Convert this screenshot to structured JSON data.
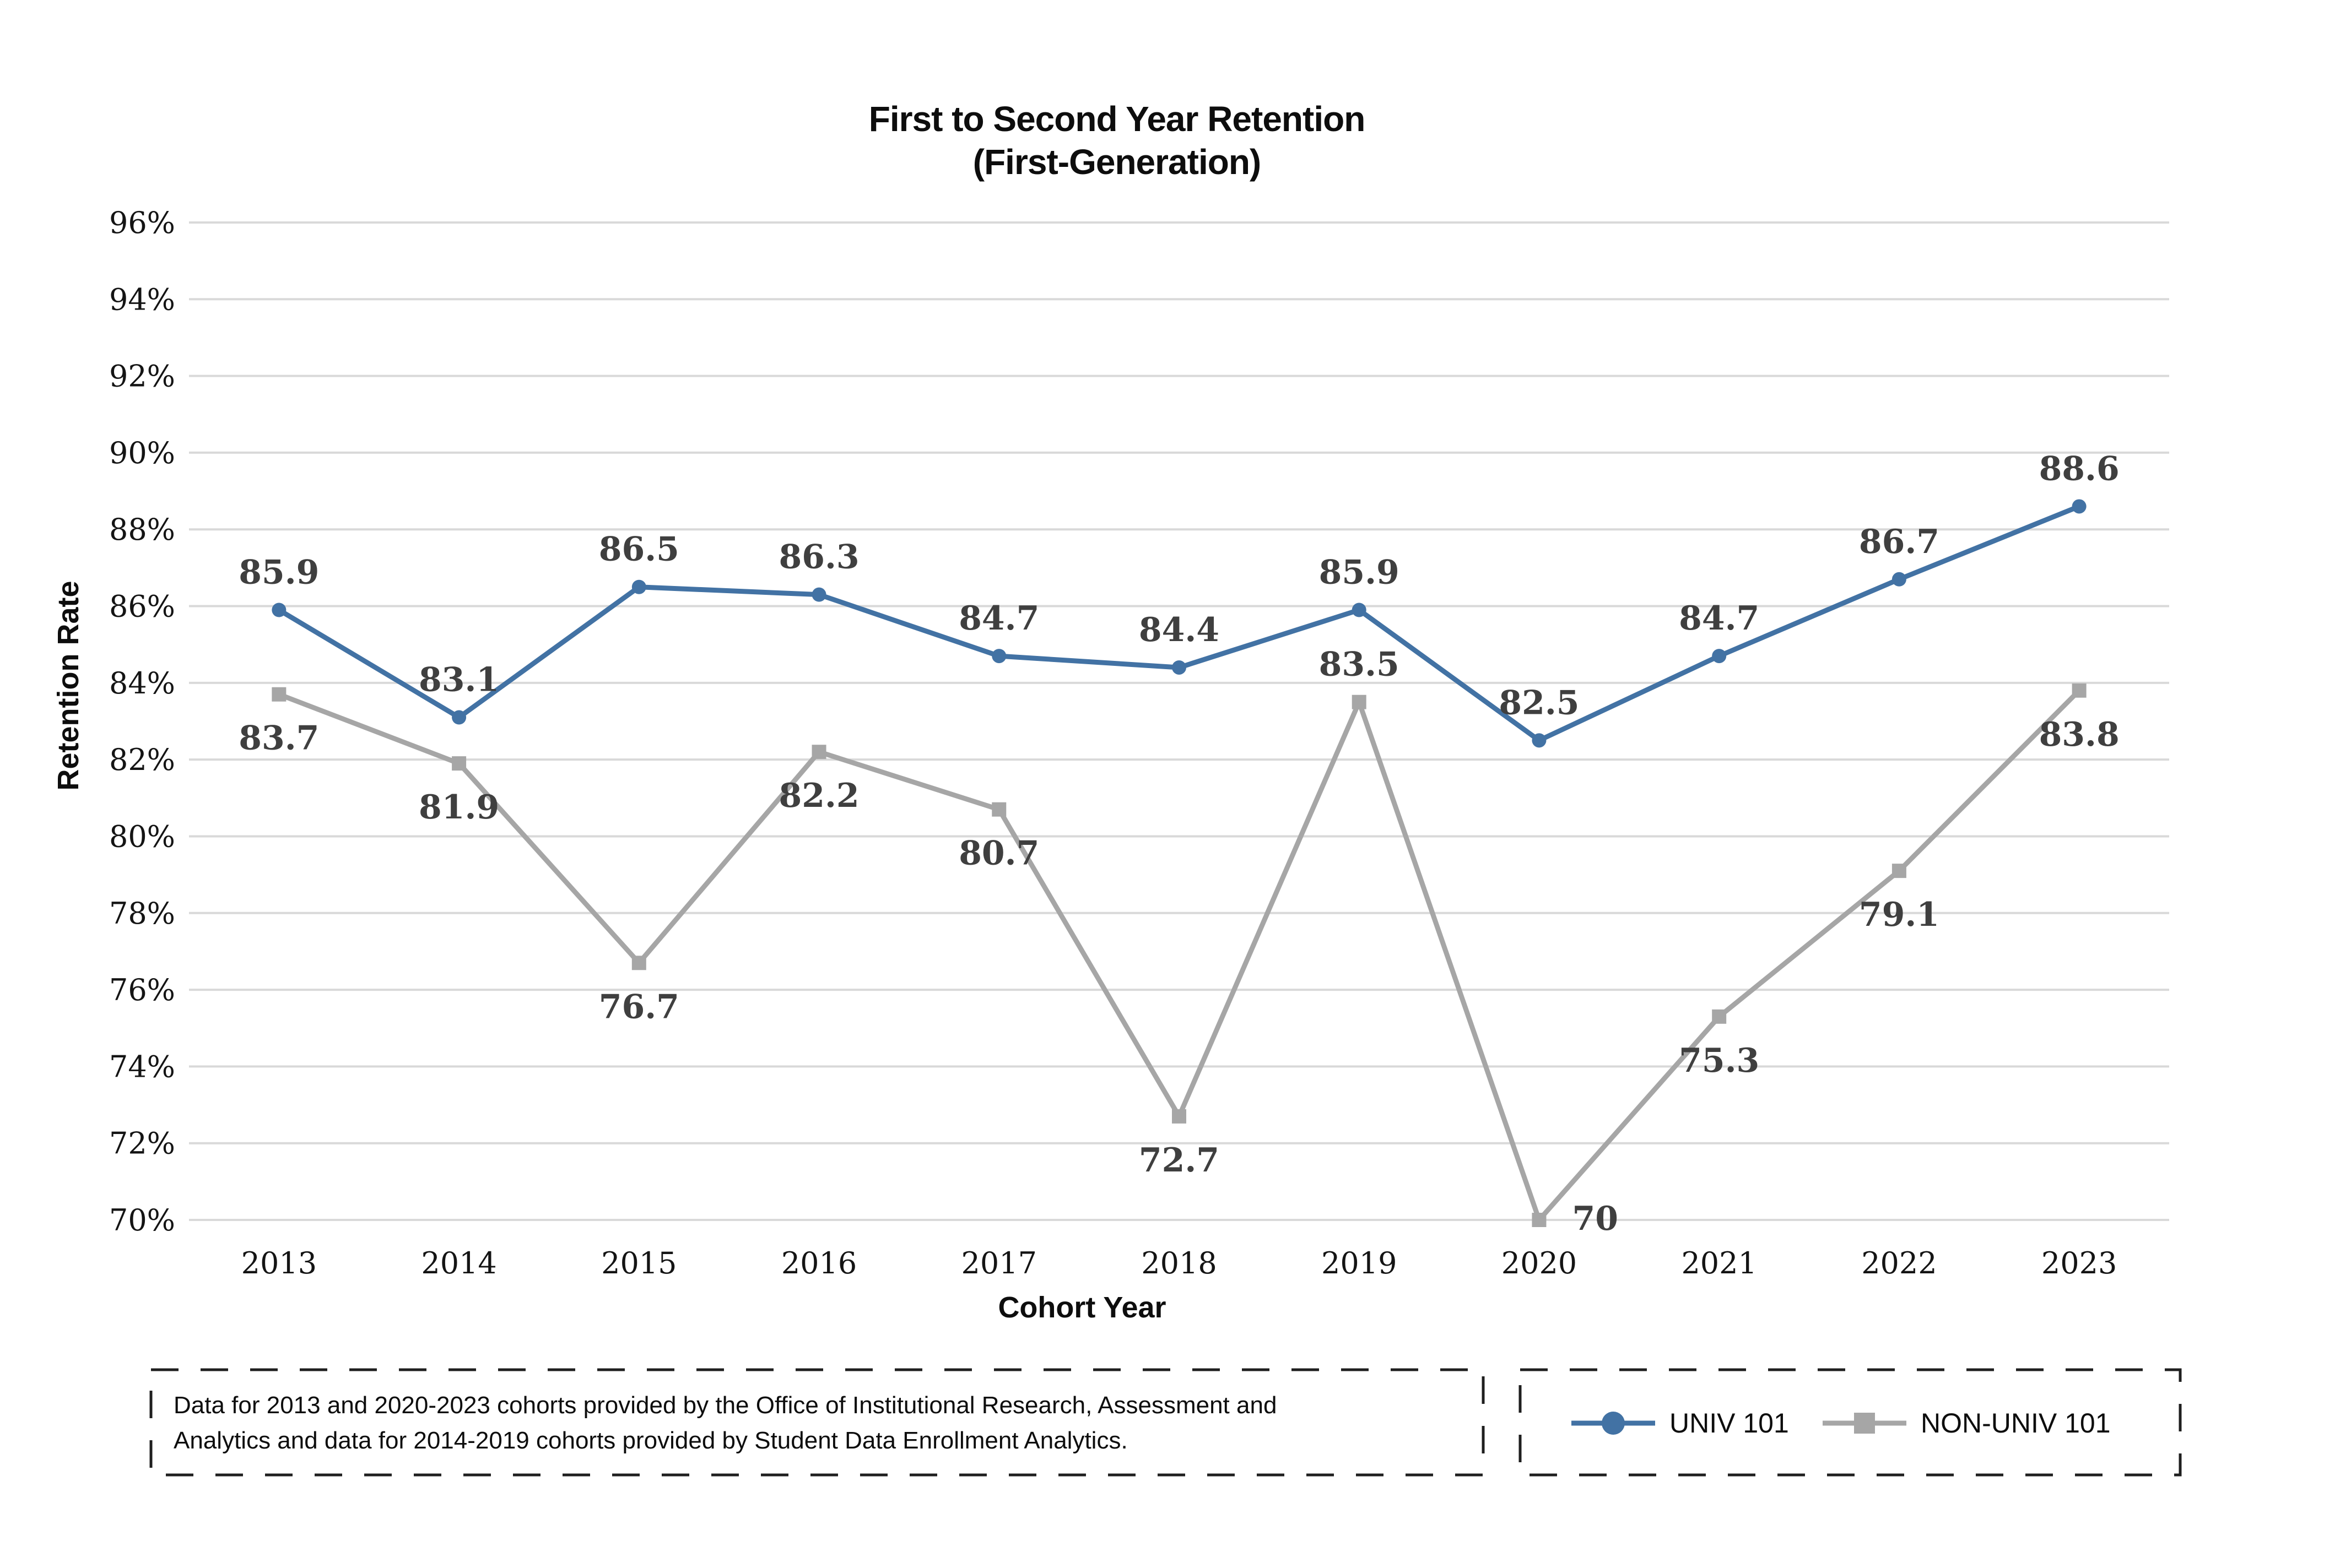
{
  "chart_data": {
    "type": "line",
    "title": "First to Second Year Retention",
    "subtitle": "(First-Generation)",
    "xlabel": "Cohort Year",
    "ylabel": "Retention Rate",
    "ylim": [
      70,
      96
    ],
    "ytick_step": 2,
    "ytick_suffix": "%",
    "grid": true,
    "legend_position": "bottom-right",
    "categories": [
      "2013",
      "2014",
      "2015",
      "2016",
      "2017",
      "2018",
      "2019",
      "2020",
      "2021",
      "2022",
      "2023"
    ],
    "series": [
      {
        "name": "UNIV 101",
        "marker": "circle",
        "color": "#4272a4",
        "values": [
          85.9,
          83.1,
          86.5,
          86.3,
          84.7,
          84.4,
          85.9,
          82.5,
          84.7,
          86.7,
          88.6
        ],
        "label_positions": [
          "above",
          "above",
          "above",
          "above",
          "above",
          "above",
          "above",
          "above",
          "above",
          "above",
          "above"
        ]
      },
      {
        "name": "NON-UNIV 101",
        "marker": "square",
        "color": "#a6a6a6",
        "values": [
          83.7,
          81.9,
          76.7,
          82.2,
          80.7,
          72.7,
          83.5,
          70,
          75.3,
          79.1,
          83.8
        ],
        "label_positions": [
          "below",
          "below",
          "below",
          "below",
          "below",
          "below",
          "above",
          "right",
          "below",
          "below",
          "below"
        ]
      }
    ],
    "data_label_color": "#3f3f3f",
    "gridline_color": "#d9d9d9",
    "axis_text_color": "#141414"
  },
  "footnote": {
    "line1": "Data for 2013 and 2020-2023 cohorts provided by the Office of Institutional Research, Assessment and",
    "line2": "Analytics and data for 2014-2019 cohorts provided by Student Data Enrollment Analytics."
  }
}
